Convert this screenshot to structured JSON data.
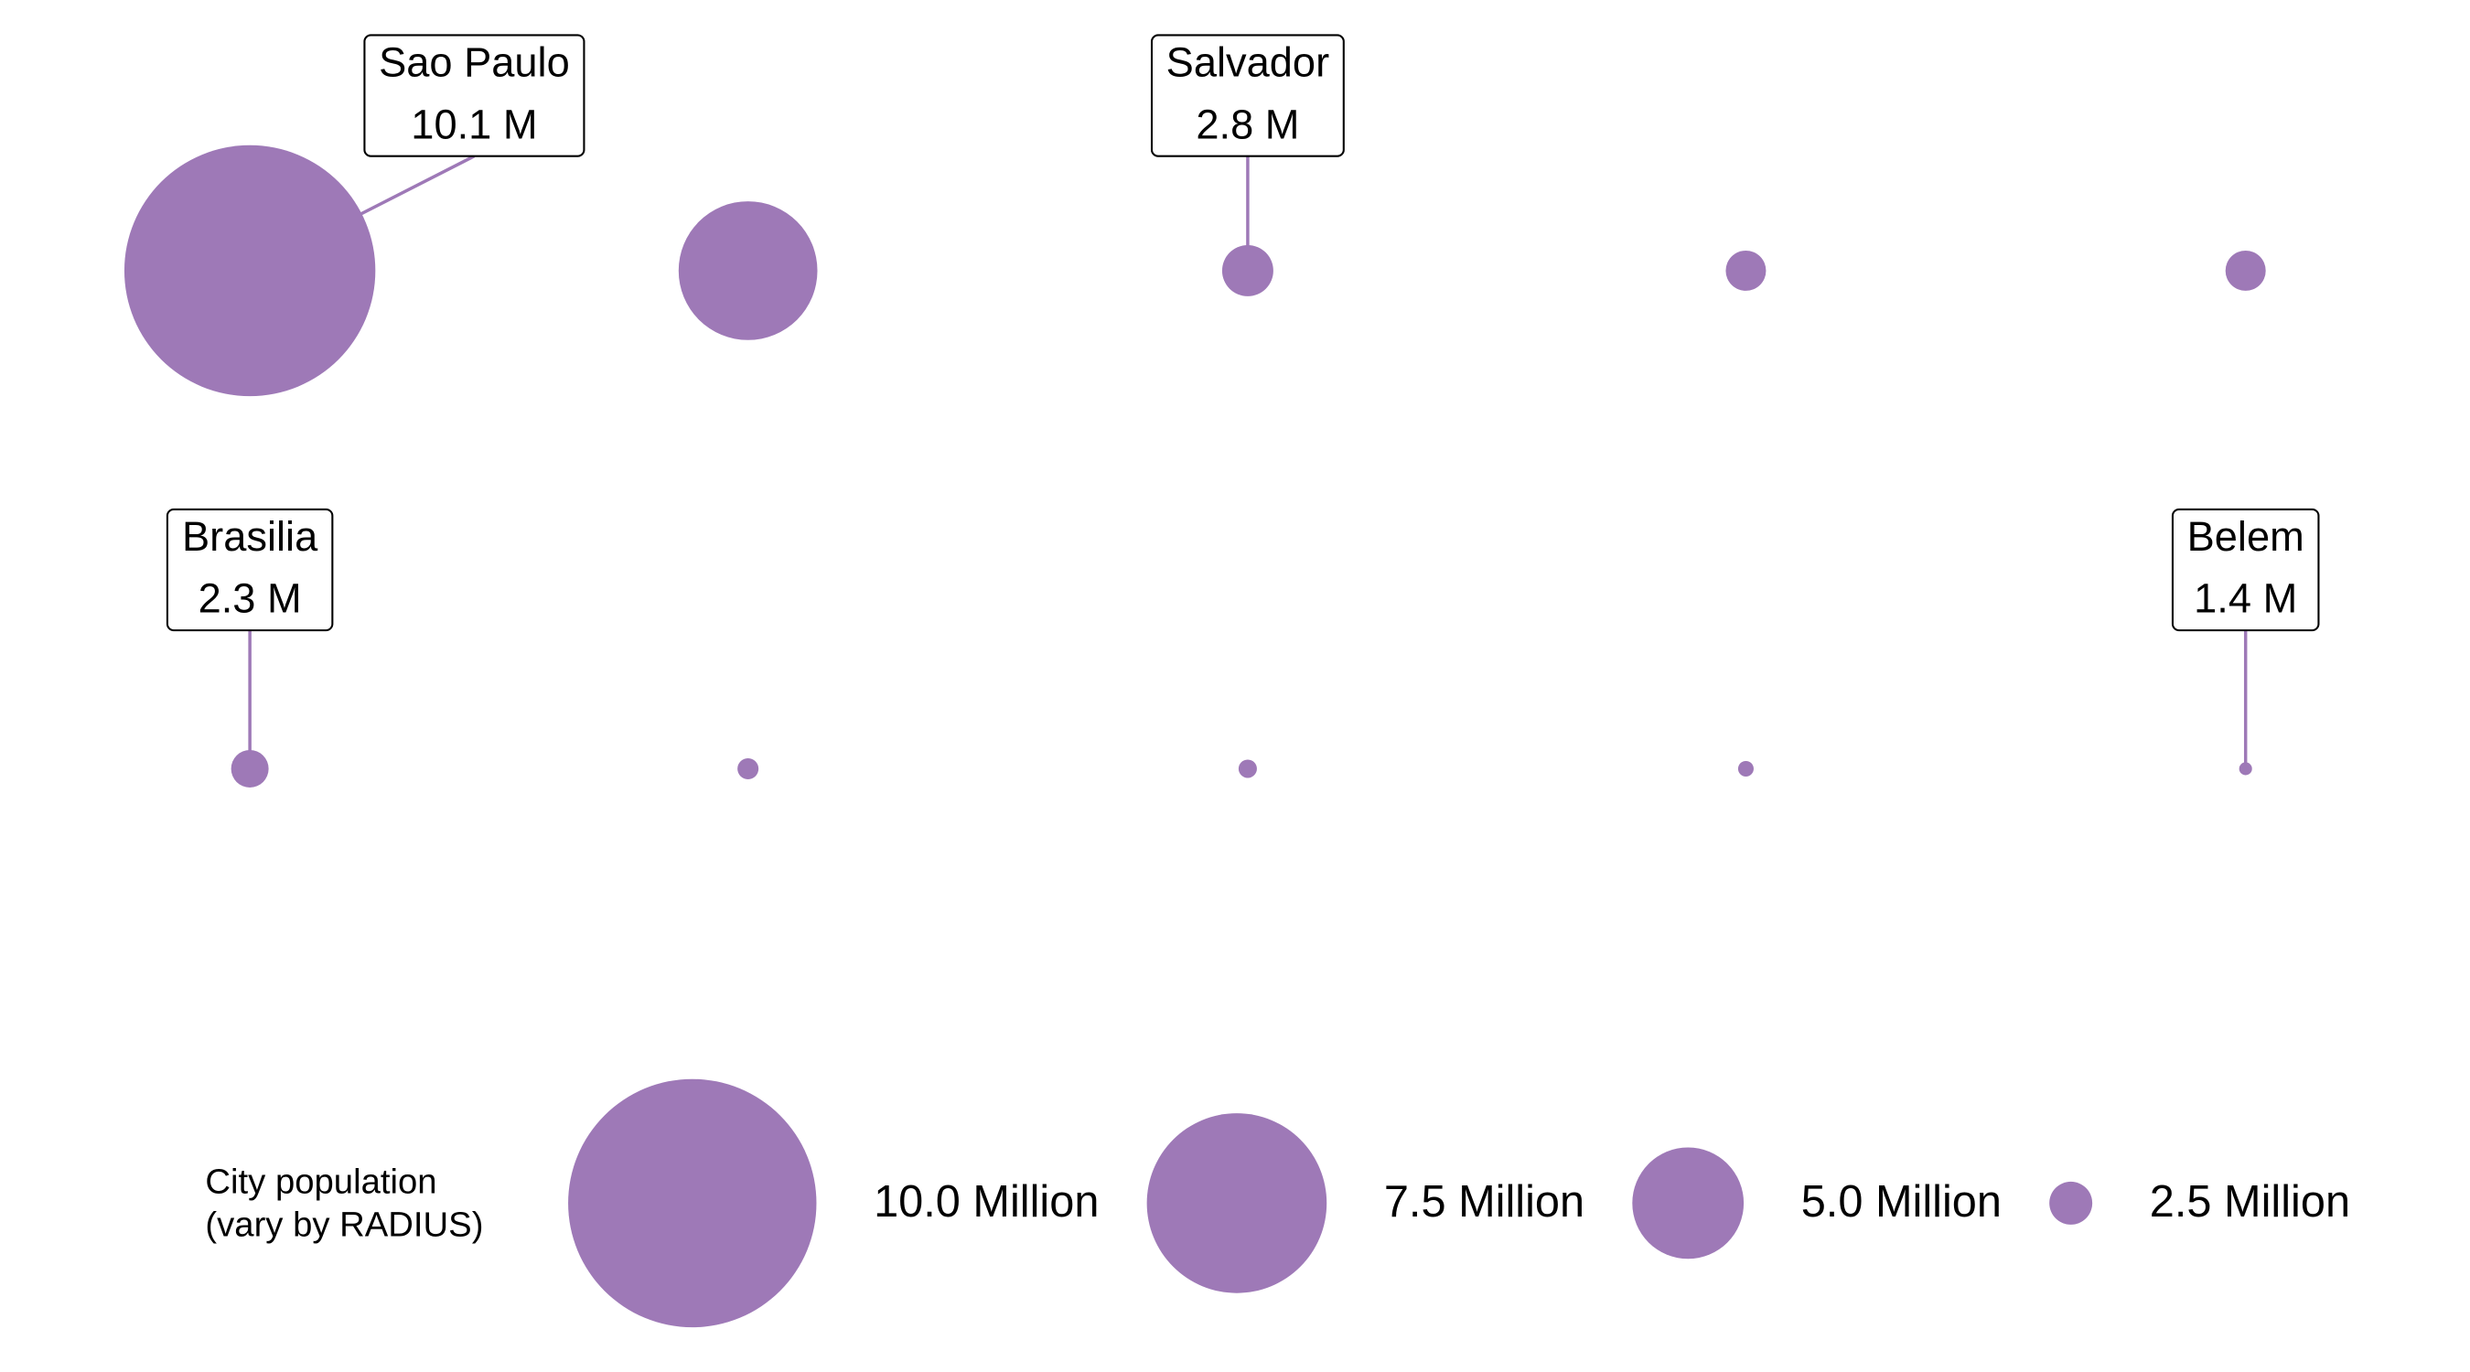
{
  "chart_data": {
    "type": "bubble",
    "categories": [
      "Sao Paulo",
      null,
      "Salvador",
      null,
      null,
      "Brasilia",
      null,
      null,
      null,
      "Belem"
    ],
    "sizes": [
      10.1,
      6.0,
      2.8,
      2.4,
      2.4,
      2.3,
      1.7,
      1.6,
      1.5,
      1.4
    ],
    "value_labels": [
      "10.1 M",
      null,
      "2.8 M",
      null,
      null,
      "2.3 M",
      null,
      null,
      null,
      "1.4 M"
    ],
    "color": "#9e79b7",
    "legend_title": [
      "City population",
      "(vary by RADIUS)"
    ],
    "size_legend": [
      {
        "value": 10,
        "label": "10.0 Million"
      },
      {
        "value": 7.5,
        "label": "7.5 Million"
      },
      {
        "value": 5,
        "label": "5.0 Million"
      },
      {
        "value": 2.5,
        "label": "2.5 Million"
      }
    ]
  }
}
